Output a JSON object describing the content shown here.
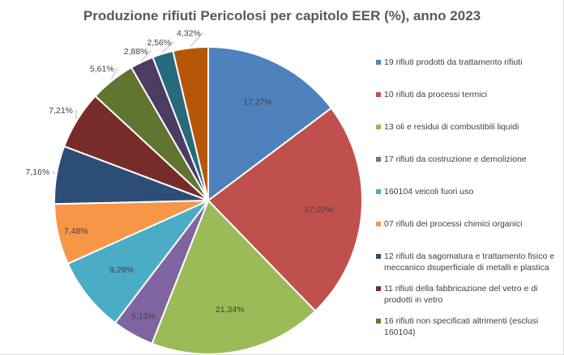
{
  "chart_data": {
    "type": "pie",
    "title": "Produzione rifiuti Pericolosi per capitolo EER (%), anno 2023",
    "legend_position": "right",
    "slices": [
      {
        "label": "19 rifiuti prodotti da trattamento rifiuti",
        "value": 17.27,
        "display": "17,27%",
        "color": "#4f81bd"
      },
      {
        "label": "10 rifiuti da processi termici",
        "value": 27.02,
        "display": "27,02%",
        "color": "#c0504d"
      },
      {
        "label": "13 oli e residui di combustibili liquidi",
        "value": 21.34,
        "display": "21,34%",
        "color": "#9bbb59"
      },
      {
        "label": "17 rifiuti da costruzione e demolizione",
        "value": 5.13,
        "display": "5,13%",
        "color": "#8064a2"
      },
      {
        "label": "160104 veicoli fuori uso",
        "value": 9.29,
        "display": "9,29%",
        "color": "#4bacc6"
      },
      {
        "label": "07 rifiuti dei processi chimici organici",
        "value": 7.48,
        "display": "7,48%",
        "color": "#f79646"
      },
      {
        "label": "12 rifiuti da sagomatura e trattamento fisico e meccanico dsuperficiale di metalli e plastica",
        "value": 7.16,
        "display": "7,16%",
        "color": "#2c4d75"
      },
      {
        "label": "11 rifiuti della fabbricazione del vetro e di prodotti in vetro",
        "value": 7.21,
        "display": "7,21%",
        "color": "#772c2a"
      },
      {
        "label": "16 rifiuti non specificati altrimenti (esclusi 160104)",
        "value": 5.61,
        "display": "5,61%",
        "color": "#5f7530"
      },
      {
        "label": "",
        "value": 2.88,
        "display": "2,88%",
        "color": "#4d3b62"
      },
      {
        "label": "",
        "value": 2.56,
        "display": "2,56%",
        "color": "#276a7c"
      },
      {
        "label": "",
        "value": 4.32,
        "display": "4,32%",
        "color": "#b65708"
      }
    ]
  }
}
